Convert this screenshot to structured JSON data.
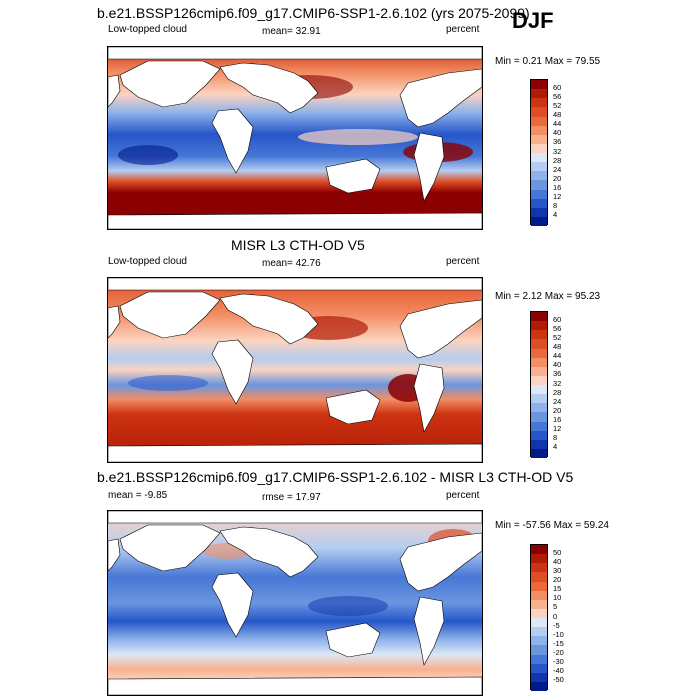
{
  "season": "DJF",
  "panels": [
    {
      "title": "b.e21.BSSP126cmip6.f09_g17.CMIP6-SSP1-2.6.102 (yrs 2075-2099)",
      "left_label": "Low-topped cloud",
      "center_label": "mean=  32.91",
      "right_label": "percent",
      "minmax": "Min =   0.21 Max =  79.55"
    },
    {
      "title": "MISR L3 CTH-OD V5",
      "left_label": "Low-topped cloud",
      "center_label": "mean=  42.76",
      "right_label": "percent",
      "minmax": "Min =   2.12 Max =  95.23"
    },
    {
      "title": "b.e21.BSSP126cmip6.f09_g17.CMIP6-SSP1-2.6.102 - MISR L3 CTH-OD V5",
      "left_label": "mean =  -9.85",
      "center_label": "rmse =  17.97",
      "right_label": "percent",
      "minmax": "Min = -57.56 Max =  59.24"
    }
  ],
  "colorbars": {
    "abs_ticks": [
      "60",
      "56",
      "52",
      "48",
      "44",
      "40",
      "36",
      "32",
      "28",
      "24",
      "20",
      "16",
      "12",
      "8",
      "4"
    ],
    "abs_colors": [
      "#8b0000",
      "#b11a06",
      "#cc3311",
      "#de4d25",
      "#ea6a3e",
      "#f38d63",
      "#f8b08f",
      "#fbd3c0",
      "#dde8f7",
      "#b4cdf1",
      "#8eb3ea",
      "#6a96e0",
      "#4777d6",
      "#2656c8",
      "#1035ac",
      "#001a8a"
    ],
    "diff_ticks": [
      "50",
      "40",
      "30",
      "20",
      "15",
      "10",
      "5",
      "0",
      "-5",
      "-10",
      "-15",
      "-20",
      "-30",
      "-40",
      "-50"
    ],
    "diff_colors": [
      "#8b0000",
      "#b11a06",
      "#cc3311",
      "#de4d25",
      "#ea6a3e",
      "#f38d63",
      "#f8b08f",
      "#fbd3c0",
      "#dde8f7",
      "#b4cdf1",
      "#8eb3ea",
      "#6a96e0",
      "#4777d6",
      "#2656c8",
      "#1035ac",
      "#001a8a"
    ]
  }
}
